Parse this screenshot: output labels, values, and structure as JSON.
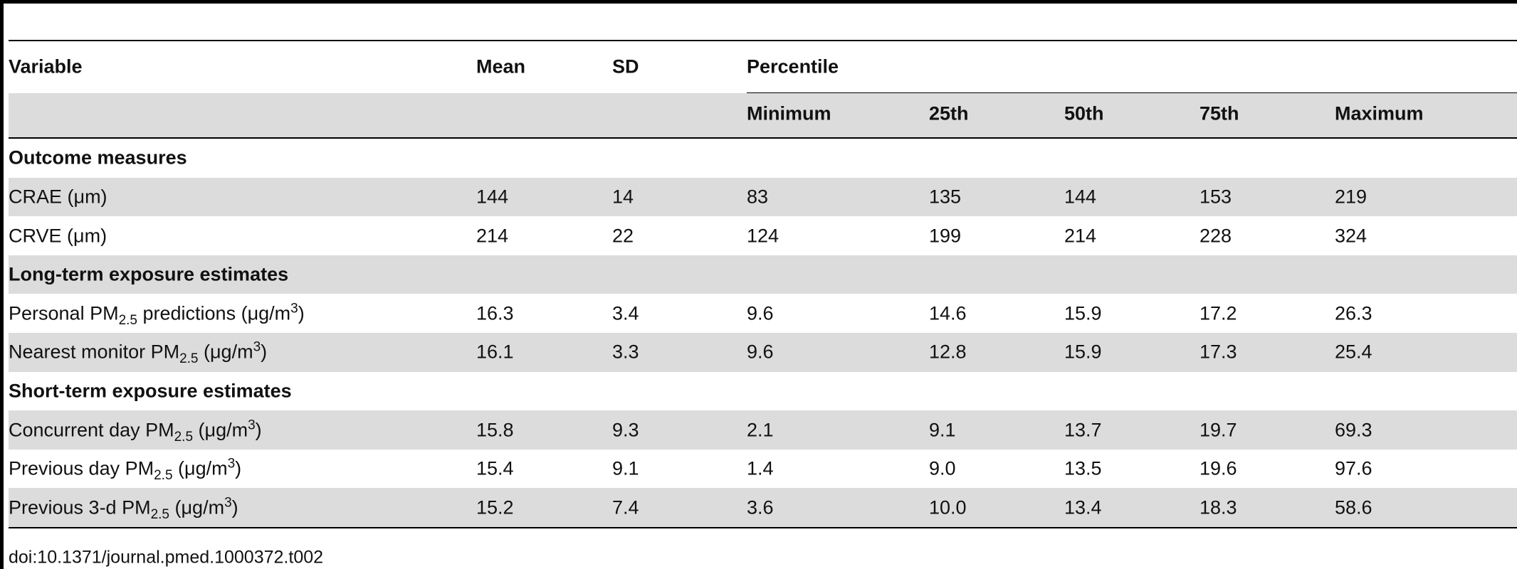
{
  "table": {
    "header": [
      "Variable",
      "Mean",
      "SD",
      "Percentile"
    ],
    "subheader": [
      "Minimum",
      "25th",
      "50th",
      "75th",
      "Maximum"
    ],
    "rows": [
      {
        "section": "Outcome measures"
      },
      {
        "label": [
          {
            "t": "CRAE (μm)"
          }
        ],
        "values": [
          "144",
          "14",
          "83",
          "135",
          "144",
          "153",
          "219"
        ]
      },
      {
        "label": [
          {
            "t": "CRVE (μm)"
          }
        ],
        "values": [
          "214",
          "22",
          "124",
          "199",
          "214",
          "228",
          "324"
        ]
      },
      {
        "section": "Long-term exposure estimates"
      },
      {
        "label": [
          {
            "t": "Personal PM"
          },
          {
            "t": "2.5",
            "s": "sub"
          },
          {
            "t": " predictions (μg/m"
          },
          {
            "t": "3",
            "s": "sup"
          },
          {
            "t": ")"
          }
        ],
        "values": [
          "16.3",
          "3.4",
          "9.6",
          "14.6",
          "15.9",
          "17.2",
          "26.3"
        ]
      },
      {
        "label": [
          {
            "t": "Nearest monitor PM"
          },
          {
            "t": "2.5",
            "s": "sub"
          },
          {
            "t": " (μg/m"
          },
          {
            "t": "3",
            "s": "sup"
          },
          {
            "t": ")"
          }
        ],
        "values": [
          "16.1",
          "3.3",
          "9.6",
          "12.8",
          "15.9",
          "17.3",
          "25.4"
        ]
      },
      {
        "section": "Short-term exposure estimates"
      },
      {
        "label": [
          {
            "t": "Concurrent day PM"
          },
          {
            "t": "2.5",
            "s": "sub"
          },
          {
            "t": " (μg/m"
          },
          {
            "t": "3",
            "s": "sup"
          },
          {
            "t": ")"
          }
        ],
        "values": [
          "15.8",
          "9.3",
          "2.1",
          "9.1",
          "13.7",
          "19.7",
          "69.3"
        ]
      },
      {
        "label": [
          {
            "t": "Previous day PM"
          },
          {
            "t": "2.5",
            "s": "sub"
          },
          {
            "t": " (μg/m"
          },
          {
            "t": "3",
            "s": "sup"
          },
          {
            "t": ")"
          }
        ],
        "values": [
          "15.4",
          "9.1",
          "1.4",
          "9.0",
          "13.5",
          "19.6",
          "97.6"
        ]
      },
      {
        "label": [
          {
            "t": "Previous 3-d PM"
          },
          {
            "t": "2.5",
            "s": "sub"
          },
          {
            "t": " (μg/m"
          },
          {
            "t": "3",
            "s": "sup"
          },
          {
            "t": ")"
          }
        ],
        "values": [
          "15.2",
          "7.4",
          "3.6",
          "10.0",
          "13.4",
          "18.3",
          "58.6"
        ]
      }
    ]
  },
  "footer": "doi:10.1371/journal.pmed.1000372.t002"
}
